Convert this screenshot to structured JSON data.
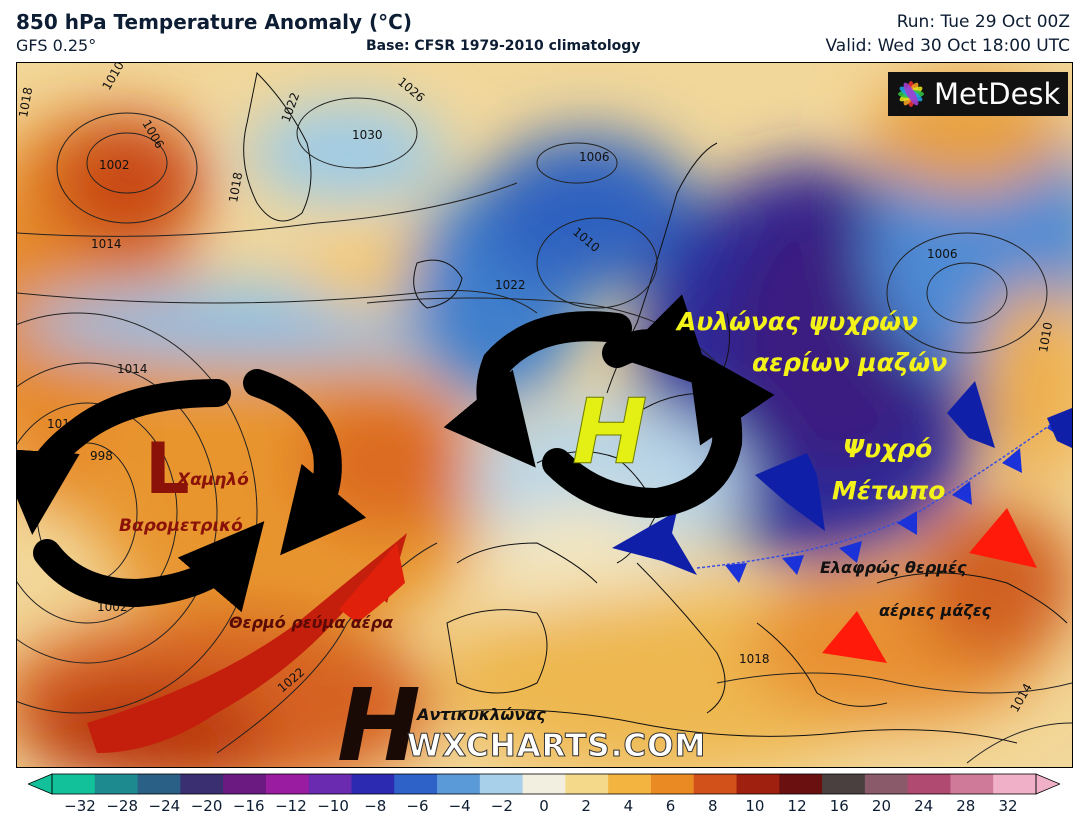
{
  "header": {
    "title": "850 hPa Temperature Anomaly (°C)",
    "model": "GFS 0.25°",
    "base": "Base: CFSR 1979-2010 climatology",
    "run": "Run: Tue 29 Oct 00Z",
    "valid": "Valid: Wed 30 Oct 18:00 UTC"
  },
  "logo": {
    "name": "MetDesk",
    "icon": "metdesk-flower-icon"
  },
  "watermark": "WXCHARTS.COM",
  "annotations": {
    "trough": [
      "Αυλώνας ψυχρών",
      "αερίων μαζών"
    ],
    "cold_front": [
      "Ψυχρό",
      "Μέτωπο"
    ],
    "low_symbol": "L",
    "low_label": [
      "Χαμηλό",
      "Βαρομετρικό"
    ],
    "high_symbol_1": "H",
    "high_symbol_2": "H",
    "anticyclone": "Αντικυκλώνας",
    "warm_flow": "Θερμό ρεύμα αέρα",
    "warm_air": [
      "Ελαφρώς θερμές",
      "αέριες μάζες"
    ]
  },
  "isobars": [
    "1018",
    "1010",
    "1006",
    "1002",
    "1022",
    "1026",
    "1030",
    "1014",
    "1018",
    "1014",
    "1010",
    "998",
    "1002",
    "1022",
    "1006",
    "1010",
    "1022",
    "1006",
    "1010",
    "1018",
    "1014"
  ],
  "colorbar": {
    "ticks": [
      "−32",
      "−28",
      "−24",
      "−20",
      "−16",
      "−12",
      "−10",
      "−8",
      "−6",
      "−4",
      "−2",
      "0",
      "2",
      "4",
      "6",
      "8",
      "10",
      "12",
      "16",
      "20",
      "24",
      "28",
      "32"
    ],
    "colors": [
      "#12c09a",
      "#1d8a90",
      "#2a5f86",
      "#3a2f70",
      "#6a1a80",
      "#9a1ca0",
      "#6a2bb0",
      "#2c2ab0",
      "#2f62c8",
      "#5a9ad8",
      "#a9d0ea",
      "#f3efe0",
      "#f5d98a",
      "#f3b440",
      "#e98a22",
      "#d2501a",
      "#a0200f",
      "#6a1010",
      "#4a4040",
      "#8a5a6a",
      "#b04a70",
      "#d07a9a",
      "#f0b0c8"
    ]
  }
}
